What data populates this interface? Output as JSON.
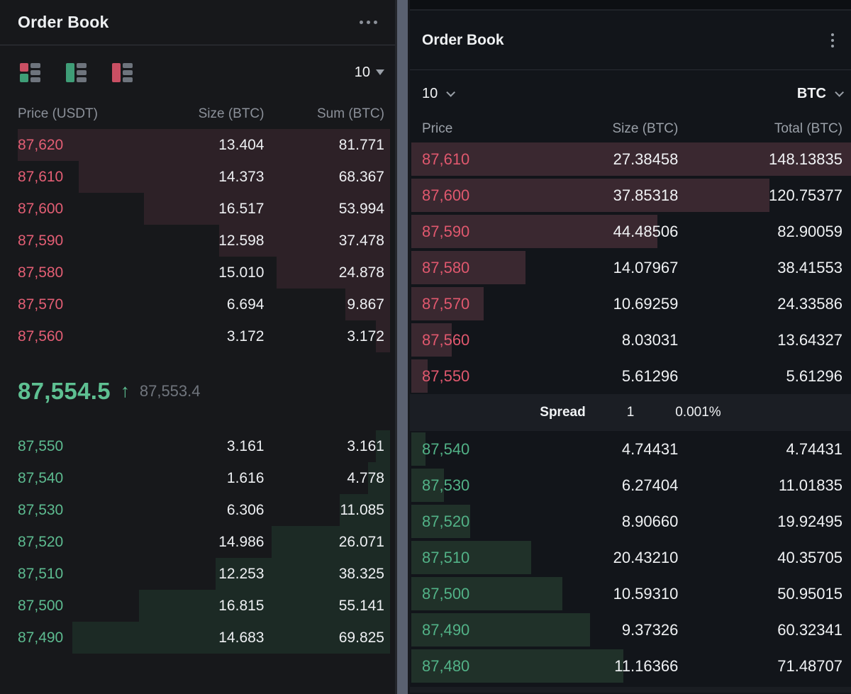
{
  "colors": {
    "ask_text": "#e35e74",
    "bid_text": "#5dbb90",
    "ask_bar_left": "#2d2127",
    "bid_bar_left": "#1c2a25",
    "ask_bar_right": "#3a2830",
    "bid_bar_right": "#203129",
    "mid_price_green": "#5ec092",
    "panel_left_bg": "#17181b",
    "panel_right_bg": "#12151a"
  },
  "left": {
    "title": "Order Book",
    "menu_icon": "ellipsis-horizontal",
    "view_modes": [
      "book-both",
      "book-bids-only",
      "book-asks-only"
    ],
    "depth_value": "10",
    "columns": [
      "Price (USDT)",
      "Size (BTC)",
      "Sum (BTC)"
    ],
    "bar_scale_max": 81.771,
    "asks": [
      {
        "price": "87,620",
        "size": "13.404",
        "sum": "81.771"
      },
      {
        "price": "87,610",
        "size": "14.373",
        "sum": "68.367"
      },
      {
        "price": "87,600",
        "size": "16.517",
        "sum": "53.994"
      },
      {
        "price": "87,590",
        "size": "12.598",
        "sum": "37.478"
      },
      {
        "price": "87,580",
        "size": "15.010",
        "sum": "24.878"
      },
      {
        "price": "87,570",
        "size": "6.694",
        "sum": "9.867"
      },
      {
        "price": "87,560",
        "size": "3.172",
        "sum": "3.172"
      }
    ],
    "mid": {
      "price": "87,554.5",
      "direction": "up",
      "arrow": "↑",
      "ref_price": "87,553.4"
    },
    "bids": [
      {
        "price": "87,550",
        "size": "3.161",
        "sum": "3.161"
      },
      {
        "price": "87,540",
        "size": "1.616",
        "sum": "4.778"
      },
      {
        "price": "87,530",
        "size": "6.306",
        "sum": "11.085"
      },
      {
        "price": "87,520",
        "size": "14.986",
        "sum": "26.071"
      },
      {
        "price": "87,510",
        "size": "12.253",
        "sum": "38.325"
      },
      {
        "price": "87,500",
        "size": "16.815",
        "sum": "55.141"
      },
      {
        "price": "87,490",
        "size": "14.683",
        "sum": "69.825"
      }
    ]
  },
  "right": {
    "title": "Order Book",
    "menu_icon": "ellipsis-vertical",
    "depth_value": "10",
    "unit_value": "BTC",
    "columns": [
      "Price",
      "Size (BTC)",
      "Total (BTC)"
    ],
    "bar_scale_max": 148.13835,
    "asks": [
      {
        "price": "87,610",
        "size": "27.38458",
        "sum": "148.13835"
      },
      {
        "price": "87,600",
        "size": "37.85318",
        "sum": "120.75377"
      },
      {
        "price": "87,590",
        "size": "44.48506",
        "sum": "82.90059"
      },
      {
        "price": "87,580",
        "size": "14.07967",
        "sum": "38.41553"
      },
      {
        "price": "87,570",
        "size": "10.69259",
        "sum": "24.33586"
      },
      {
        "price": "87,560",
        "size": "8.03031",
        "sum": "13.64327"
      },
      {
        "price": "87,550",
        "size": "5.61296",
        "sum": "5.61296"
      }
    ],
    "spread": {
      "label": "Spread",
      "value": "1",
      "percent": "0.001%"
    },
    "bids": [
      {
        "price": "87,540",
        "size": "4.74431",
        "sum": "4.74431"
      },
      {
        "price": "87,530",
        "size": "6.27404",
        "sum": "11.01835"
      },
      {
        "price": "87,520",
        "size": "8.90660",
        "sum": "19.92495"
      },
      {
        "price": "87,510",
        "size": "20.43210",
        "sum": "40.35705"
      },
      {
        "price": "87,500",
        "size": "10.59310",
        "sum": "50.95015"
      },
      {
        "price": "87,490",
        "size": "9.37326",
        "sum": "60.32341"
      },
      {
        "price": "87,480",
        "size": "11.16366",
        "sum": "71.48707"
      }
    ]
  }
}
